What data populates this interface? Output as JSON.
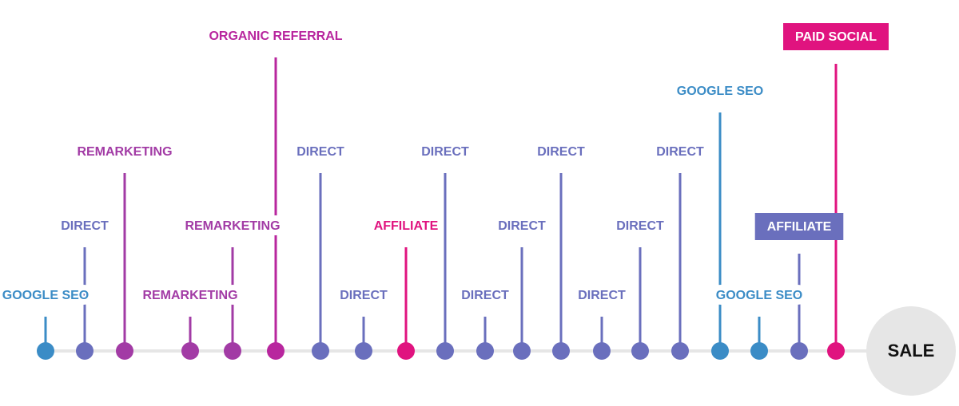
{
  "nodes": [
    {
      "label": "GOOGLE SEO",
      "color": "#3b8cc6"
    },
    {
      "label": "DIRECT",
      "color": "#6a6fbd"
    },
    {
      "label": "REMARKETING",
      "color": "#a23ba5"
    },
    {
      "label": "REMARKETING",
      "color": "#a23ba5"
    },
    {
      "label": "REMARKETING",
      "color": "#a23ba5"
    },
    {
      "label": "ORGANIC REFERRAL",
      "color": "#b8269e"
    },
    {
      "label": "DIRECT",
      "color": "#6a6fbd"
    },
    {
      "label": "DIRECT",
      "color": "#6a6fbd"
    },
    {
      "label": "AFFILIATE",
      "color": "#e0137f"
    },
    {
      "label": "DIRECT",
      "color": "#6a6fbd"
    },
    {
      "label": "DIRECT",
      "color": "#6a6fbd"
    },
    {
      "label": "DIRECT",
      "color": "#6a6fbd"
    },
    {
      "label": "DIRECT",
      "color": "#6a6fbd"
    },
    {
      "label": "DIRECT",
      "color": "#6a6fbd"
    },
    {
      "label": "DIRECT",
      "color": "#6a6fbd"
    },
    {
      "label": "DIRECT",
      "color": "#6a6fbd"
    },
    {
      "label": "GOOGLE SEO",
      "color": "#3b8cc6"
    },
    {
      "label": "GOOGLE SEO",
      "color": "#3b8cc6"
    },
    {
      "label": "AFFILIATE",
      "color": "#6a6fbd",
      "highlighted": true
    },
    {
      "label": "PAID SOCIAL",
      "color": "#e0137f",
      "highlighted": true
    }
  ],
  "end": {
    "label": "SALE"
  }
}
